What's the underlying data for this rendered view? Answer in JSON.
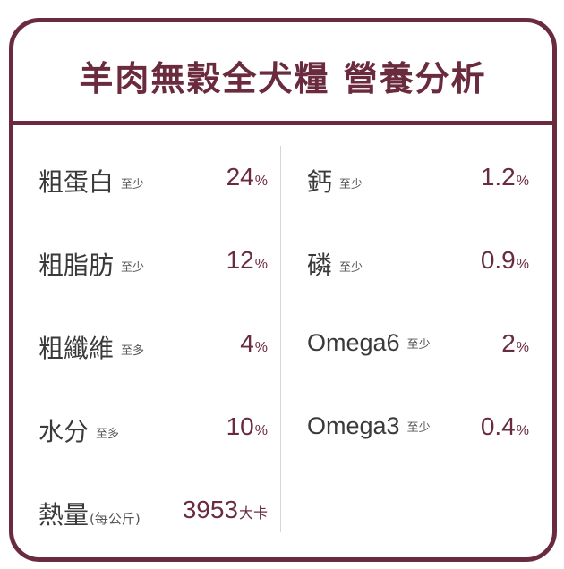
{
  "title": "羊肉無穀全犬糧 營養分析",
  "left_items": [
    {
      "name": "粗蛋白",
      "note": "至少",
      "value": "24",
      "unit": "%"
    },
    {
      "name": "粗脂肪",
      "note": "至少",
      "value": "12",
      "unit": "%"
    },
    {
      "name": "粗纖維",
      "note": "至多",
      "value": "4",
      "unit": "%"
    },
    {
      "name": "水分",
      "note": "至多",
      "value": "10",
      "unit": "%"
    }
  ],
  "energy": {
    "name": "熱量",
    "note": "(每公斤)",
    "value": "3953",
    "unit": "大卡"
  },
  "right_items": [
    {
      "name": "鈣",
      "note": "至少",
      "value": "1.2",
      "unit": "%"
    },
    {
      "name": "磷",
      "note": "至少",
      "value": "0.9",
      "unit": "%"
    },
    {
      "name": "Omega6",
      "note": "至少",
      "value": "2",
      "unit": "%"
    },
    {
      "name": "Omega3",
      "note": "至少",
      "value": "0.4",
      "unit": "%"
    }
  ],
  "colors": {
    "accent": "#6b2b3e",
    "text": "#3a3a3a",
    "divider": "#d6d6d6"
  }
}
